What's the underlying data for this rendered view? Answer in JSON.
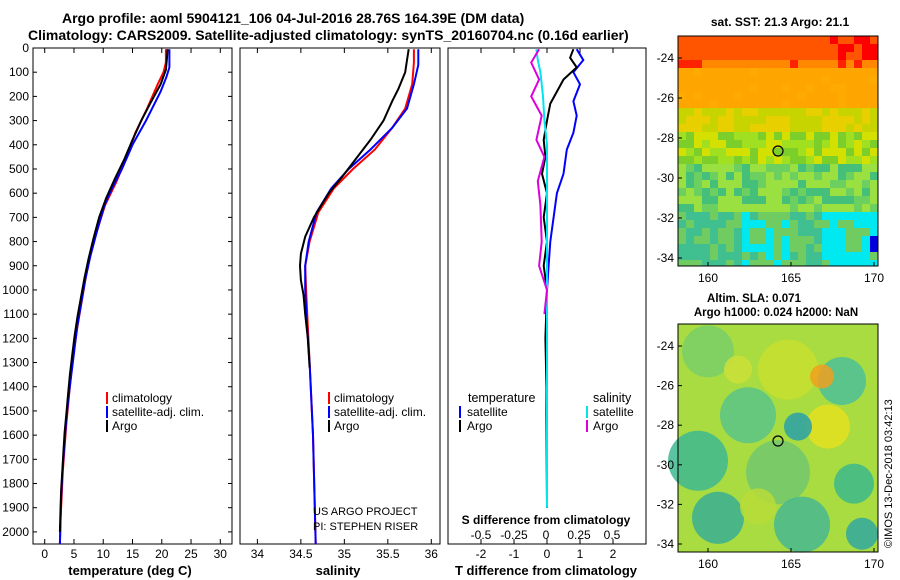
{
  "titles": {
    "line1": "Argo profile: aoml 5904121_106 04-Jul-2016 28.76S 164.39E (DM data)",
    "line2": "Climatology: CARS2009. Satellite-adjusted climatology: synTS_20160704.nc (0.16d earlier)"
  },
  "colors": {
    "climatology": "#ff0000",
    "satellite_adj": "#0000ff",
    "argo": "#000000",
    "sat_salinity": "#00e5ee",
    "argo_salinity": "#dd00dd"
  },
  "depth_axis": {
    "ticks": [
      0,
      100,
      200,
      300,
      400,
      500,
      600,
      700,
      800,
      900,
      1000,
      1100,
      1200,
      1300,
      1400,
      1500,
      1600,
      1700,
      1800,
      1900,
      2000
    ],
    "range": [
      0,
      2050
    ]
  },
  "chart_data": [
    {
      "type": "line",
      "name": "temperature",
      "xlabel": "temperature (deg C)",
      "xticks": [
        0,
        5,
        10,
        15,
        20,
        25,
        30
      ],
      "xlim": [
        -2,
        32
      ],
      "legend": [
        "climatology",
        "satellite-adj. clim.",
        "Argo"
      ],
      "series": [
        {
          "name": "climatology",
          "color": "#ff0000",
          "points": [
            [
              20.7,
              5
            ],
            [
              20.7,
              60
            ],
            [
              20.3,
              100
            ],
            [
              19.3,
              150
            ],
            [
              17.5,
              250
            ],
            [
              15.5,
              350
            ],
            [
              14.0,
              450
            ],
            [
              12.3,
              550
            ],
            [
              10.3,
              650
            ],
            [
              9.0,
              750
            ],
            [
              7.8,
              850
            ],
            [
              7.0,
              950
            ],
            [
              6.3,
              1050
            ],
            [
              5.6,
              1150
            ],
            [
              5.0,
              1250
            ],
            [
              4.5,
              1350
            ],
            [
              4.1,
              1450
            ],
            [
              3.7,
              1550
            ],
            [
              3.4,
              1650
            ],
            [
              3.1,
              1750
            ],
            [
              2.9,
              1850
            ],
            [
              2.7,
              1950
            ],
            [
              2.6,
              2050
            ]
          ]
        },
        {
          "name": "satellite-adj. clim.",
          "color": "#0000ff",
          "points": [
            [
              21.3,
              5
            ],
            [
              21.3,
              80
            ],
            [
              20.8,
              120
            ],
            [
              19.8,
              180
            ],
            [
              17.3,
              300
            ],
            [
              15.0,
              400
            ],
            [
              13.2,
              500
            ],
            [
              11.5,
              580
            ],
            [
              10.2,
              650
            ],
            [
              8.9,
              760
            ],
            [
              7.8,
              860
            ],
            [
              6.9,
              960
            ],
            [
              6.2,
              1060
            ],
            [
              5.5,
              1160
            ],
            [
              5.0,
              1260
            ],
            [
              4.5,
              1360
            ],
            [
              4.0,
              1460
            ],
            [
              3.6,
              1560
            ],
            [
              3.3,
              1660
            ],
            [
              3.0,
              1760
            ],
            [
              2.8,
              1860
            ],
            [
              2.7,
              1960
            ],
            [
              2.6,
              2050
            ]
          ]
        },
        {
          "name": "Argo",
          "color": "#000000",
          "points": [
            [
              21.0,
              5
            ],
            [
              20.9,
              40
            ],
            [
              20.7,
              90
            ],
            [
              19.8,
              150
            ],
            [
              18.0,
              230
            ],
            [
              16.5,
              300
            ],
            [
              15.0,
              380
            ],
            [
              13.6,
              460
            ],
            [
              12.0,
              540
            ],
            [
              10.5,
              620
            ],
            [
              9.3,
              700
            ],
            [
              8.3,
              790
            ],
            [
              7.5,
              870
            ],
            [
              6.8,
              950
            ],
            [
              6.2,
              1030
            ],
            [
              5.6,
              1110
            ],
            [
              5.1,
              1190
            ],
            [
              4.7,
              1270
            ],
            [
              4.3,
              1350
            ],
            [
              4.0,
              1430
            ],
            [
              3.7,
              1510
            ],
            [
              3.4,
              1590
            ],
            [
              3.2,
              1670
            ],
            [
              3.0,
              1750
            ],
            [
              2.8,
              1830
            ],
            [
              2.7,
              1910
            ],
            [
              2.6,
              2000
            ]
          ]
        }
      ]
    },
    {
      "type": "line",
      "name": "salinity",
      "xlabel": "salinity",
      "xticks": [
        34,
        34.5,
        35,
        35.5,
        36
      ],
      "xlim": [
        33.8,
        36.1
      ],
      "legend": [
        "climatology",
        "satellite-adj. clim.",
        "Argo"
      ],
      "annotations": [
        "US ARGO PROJECT",
        "PI: STEPHEN RISER"
      ],
      "series": [
        {
          "name": "climatology",
          "color": "#ff0000",
          "points": [
            [
              35.8,
              5
            ],
            [
              35.8,
              60
            ],
            [
              35.78,
              150
            ],
            [
              35.7,
              250
            ],
            [
              35.55,
              330
            ],
            [
              35.35,
              420
            ],
            [
              35.1,
              500
            ],
            [
              34.88,
              580
            ],
            [
              34.7,
              680
            ],
            [
              34.6,
              800
            ],
            [
              34.55,
              900
            ],
            [
              34.56,
              1000
            ],
            [
              34.58,
              1150
            ],
            [
              34.6,
              1300
            ],
            [
              34.62,
              1450
            ],
            [
              34.64,
              1600
            ],
            [
              34.65,
              1750
            ],
            [
              34.66,
              1900
            ],
            [
              34.67,
              2050
            ]
          ]
        },
        {
          "name": "satellite-adj. clim.",
          "color": "#0000ff",
          "points": [
            [
              35.85,
              5
            ],
            [
              35.85,
              70
            ],
            [
              35.8,
              150
            ],
            [
              35.72,
              250
            ],
            [
              35.55,
              330
            ],
            [
              35.3,
              420
            ],
            [
              35.05,
              500
            ],
            [
              34.85,
              580
            ],
            [
              34.68,
              680
            ],
            [
              34.59,
              800
            ],
            [
              34.55,
              900
            ],
            [
              34.55,
              1000
            ],
            [
              34.57,
              1150
            ],
            [
              34.6,
              1300
            ],
            [
              34.62,
              1450
            ],
            [
              34.64,
              1600
            ],
            [
              34.65,
              1750
            ],
            [
              34.66,
              1900
            ],
            [
              34.67,
              2050
            ]
          ]
        },
        {
          "name": "Argo",
          "color": "#000000",
          "points": [
            [
              35.74,
              5
            ],
            [
              35.72,
              50
            ],
            [
              35.7,
              100
            ],
            [
              35.62,
              170
            ],
            [
              35.55,
              220
            ],
            [
              35.45,
              300
            ],
            [
              35.3,
              380
            ],
            [
              35.15,
              450
            ],
            [
              34.98,
              530
            ],
            [
              34.82,
              600
            ],
            [
              34.65,
              700
            ],
            [
              34.55,
              780
            ],
            [
              34.5,
              850
            ],
            [
              34.49,
              900
            ],
            [
              34.5,
              960
            ],
            [
              34.53,
              1020
            ],
            [
              34.55,
              1100
            ],
            [
              34.58,
              1200
            ],
            [
              34.6,
              1320
            ]
          ]
        }
      ]
    },
    {
      "type": "line",
      "name": "difference",
      "xlabel": "T difference from climatology",
      "xticks": [
        -2,
        -1,
        0,
        1,
        2
      ],
      "xlim": [
        -3,
        3
      ],
      "secondary_label": "S difference from climatology",
      "secondary_ticks": [
        "-0.5",
        "-0.25",
        "0",
        "0.25",
        "0.5"
      ],
      "legend_temperature_title": "temperature",
      "legend_salinity_title": "salinity",
      "legend_temperature": [
        "satellite",
        "Argo"
      ],
      "legend_salinity": [
        "satellite",
        "Argo"
      ],
      "series": [
        {
          "name": "T satellite",
          "color": "#0000ff",
          "points": [
            [
              0.9,
              5
            ],
            [
              1.1,
              50
            ],
            [
              0.8,
              100
            ],
            [
              1.0,
              150
            ],
            [
              0.8,
              220
            ],
            [
              0.9,
              280
            ],
            [
              0.8,
              350
            ],
            [
              0.6,
              420
            ],
            [
              0.5,
              520
            ],
            [
              0.3,
              600
            ],
            [
              0.2,
              700
            ],
            [
              0.1,
              800
            ],
            [
              0.05,
              900
            ],
            [
              0.0,
              1000
            ],
            [
              0.0,
              1200
            ],
            [
              -0.02,
              1500
            ],
            [
              0.0,
              1900
            ]
          ]
        },
        {
          "name": "T Argo",
          "color": "#000000",
          "points": [
            [
              0.8,
              5
            ],
            [
              0.7,
              40
            ],
            [
              0.9,
              80
            ],
            [
              0.5,
              130
            ],
            [
              0.3,
              180
            ],
            [
              0.1,
              230
            ],
            [
              0.0,
              300
            ],
            [
              -0.1,
              380
            ],
            [
              -0.05,
              450
            ],
            [
              -0.15,
              520
            ],
            [
              0.0,
              600
            ],
            [
              -0.1,
              700
            ],
            [
              0.0,
              800
            ],
            [
              -0.1,
              900
            ],
            [
              0.0,
              1000
            ],
            [
              -0.05,
              1200
            ],
            [
              0.0,
              1500
            ],
            [
              0.0,
              1900
            ]
          ]
        },
        {
          "name": "S satellite",
          "color": "#00e5ee",
          "points": [
            [
              -0.08,
              5
            ],
            [
              -0.07,
              50
            ],
            [
              -0.05,
              100
            ],
            [
              -0.03,
              200
            ],
            [
              -0.02,
              300
            ],
            [
              0.0,
              400
            ],
            [
              0.0,
              600
            ],
            [
              0.0,
              1000
            ],
            [
              0.0,
              1500
            ],
            [
              0.0,
              1900
            ]
          ]
        },
        {
          "name": "S Argo",
          "color": "#dd00dd",
          "points": [
            [
              -0.06,
              5
            ],
            [
              -0.12,
              60
            ],
            [
              -0.06,
              130
            ],
            [
              -0.12,
              200
            ],
            [
              -0.04,
              280
            ],
            [
              -0.08,
              380
            ],
            [
              -0.02,
              450
            ],
            [
              -0.07,
              550
            ],
            [
              -0.05,
              650
            ],
            [
              -0.04,
              800
            ],
            [
              -0.06,
              900
            ],
            [
              0.0,
              1000
            ],
            [
              -0.02,
              1100
            ]
          ]
        }
      ]
    }
  ],
  "maps": {
    "sst": {
      "title": "sat. SST: 21.3 Argo: 21.1",
      "lat_ticks": [
        "-24",
        "-26",
        "-28",
        "-30",
        "-32",
        "-34"
      ],
      "lon_ticks": [
        "160",
        "165",
        "170"
      ],
      "argo_lon": 164.39,
      "argo_lat": -28.76
    },
    "sla": {
      "title_line1": "Altim. SLA: 0.071",
      "title_line2": "Argo h1000: 0.024 h2000: NaN",
      "lat_ticks": [
        "-24",
        "-26",
        "-28",
        "-30",
        "-32",
        "-34"
      ],
      "lon_ticks": [
        "160",
        "165",
        "170"
      ],
      "argo_lon": 164.39,
      "argo_lat": -28.76
    }
  },
  "credit": "©IMOS 13-Dec-2018 03:42:13"
}
